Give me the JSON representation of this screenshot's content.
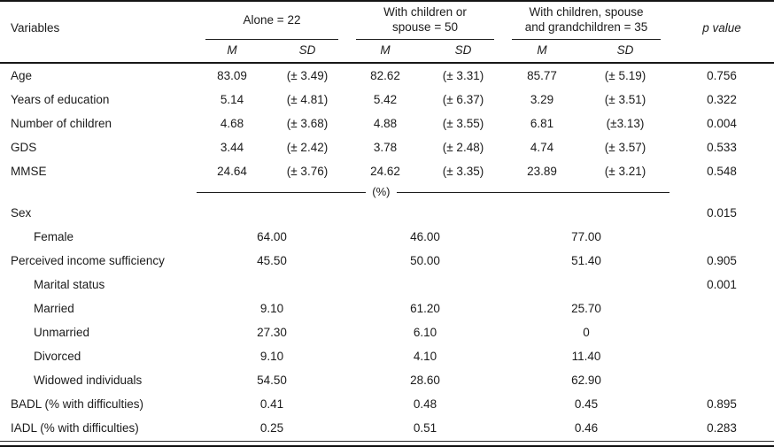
{
  "table": {
    "header": {
      "variables_label": "Variables",
      "m_label": "M",
      "sd_label": "SD",
      "p_label": "p value",
      "groups": [
        {
          "title_lines": [
            "Alone = 22"
          ]
        },
        {
          "title_lines": [
            "With children or",
            "spouse = 50"
          ]
        },
        {
          "title_lines": [
            "With children, spouse",
            "and grandchildren = 35"
          ]
        }
      ]
    },
    "percent_divider": "(%)",
    "rows": [
      {
        "label": "Age",
        "indent": false,
        "type": "msd",
        "cells": [
          "83.09",
          "(± 3.49)",
          "82.62",
          "(± 3.31)",
          "85.77",
          "(± 5.19)"
        ],
        "p": "0.756"
      },
      {
        "label": "Years of education",
        "indent": false,
        "type": "msd",
        "cells": [
          "5.14",
          "(± 4.81)",
          "5.42",
          "(± 6.37)",
          "3.29",
          "(± 3.51)"
        ],
        "p": "0.322"
      },
      {
        "label": "Number of children",
        "indent": false,
        "type": "msd",
        "cells": [
          "4.68",
          "(± 3.68)",
          "4.88",
          "(± 3.55)",
          "6.81",
          "(±3.13)"
        ],
        "p": "0.004"
      },
      {
        "label": "GDS",
        "indent": false,
        "type": "msd",
        "cells": [
          "3.44",
          "(± 2.42)",
          "3.78",
          "(± 2.48)",
          "4.74",
          "(± 3.57)"
        ],
        "p": "0.533"
      },
      {
        "label": "MMSE",
        "indent": false,
        "type": "msd",
        "cells": [
          "24.64",
          "(± 3.76)",
          "24.62",
          "(± 3.35)",
          "23.89",
          "(± 3.21)"
        ],
        "p": "0.548"
      },
      {
        "label": "",
        "indent": false,
        "type": "divider",
        "cells": [],
        "p": ""
      },
      {
        "label": "Sex",
        "indent": false,
        "type": "percent",
        "cells": [
          "",
          "",
          ""
        ],
        "p": "0.015"
      },
      {
        "label": "Female",
        "indent": true,
        "type": "percent",
        "cells": [
          "64.00",
          "46.00",
          "77.00"
        ],
        "p": ""
      },
      {
        "label": "Perceived income sufficiency",
        "indent": false,
        "type": "percent",
        "cells": [
          "45.50",
          "50.00",
          "51.40"
        ],
        "p": "0.905"
      },
      {
        "label": "Marital status",
        "indent": true,
        "type": "percent",
        "cells": [
          "",
          "",
          ""
        ],
        "p": "0.001"
      },
      {
        "label": "Married",
        "indent": true,
        "type": "percent",
        "cells": [
          "9.10",
          "61.20",
          "25.70"
        ],
        "p": ""
      },
      {
        "label": "Unmarried",
        "indent": true,
        "type": "percent",
        "cells": [
          "27.30",
          "6.10",
          "0"
        ],
        "p": ""
      },
      {
        "label": "Divorced",
        "indent": true,
        "type": "percent",
        "cells": [
          "9.10",
          "4.10",
          "11.40"
        ],
        "p": ""
      },
      {
        "label": "Widowed individuals",
        "indent": true,
        "type": "percent",
        "cells": [
          "54.50",
          "28.60",
          "62.90"
        ],
        "p": ""
      },
      {
        "label": "BADL (% with difficulties)",
        "indent": false,
        "type": "percent",
        "cells": [
          "0.41",
          "0.48",
          "0.45"
        ],
        "p": "0.895"
      },
      {
        "label": "IADL (% with difficulties)",
        "indent": false,
        "type": "percent",
        "cells": [
          "0.25",
          "0.51",
          "0.46"
        ],
        "p": "0.283"
      }
    ]
  }
}
